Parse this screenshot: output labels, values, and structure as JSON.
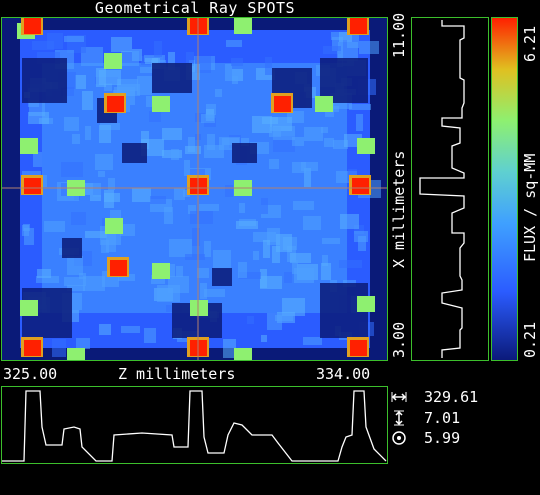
{
  "title": "Geometrical Ray SPOTS",
  "x_axis": {
    "min_label": "325.00",
    "label": "Z millimeters",
    "max_label": "334.00"
  },
  "y_axis": {
    "max_label": "11.00",
    "label": "X millimeters",
    "min_label": "3.00"
  },
  "colorbar": {
    "max_label": "6.21",
    "label": "FLUX / sq-MM",
    "min_label": "0.21",
    "colors": [
      "#0b1a7a",
      "#2b5cff",
      "#3fa0ff",
      "#5fd0d0",
      "#8ef070",
      "#e0c020",
      "#ff2000"
    ]
  },
  "stats": [
    {
      "icon": "horizontal-arrows-icon",
      "value": "329.61"
    },
    {
      "icon": "vertical-arrows-icon",
      "value": "7.01"
    },
    {
      "icon": "target-circle-icon",
      "value": "5.99"
    }
  ],
  "colors": {
    "frame": "#3cbf2c",
    "crosshair": "#b08070",
    "hot": "#ff2000",
    "warm": "#8ef070",
    "base": "#2b5cff",
    "light": "#4fa0ff",
    "dark": "#0a1a78"
  }
}
